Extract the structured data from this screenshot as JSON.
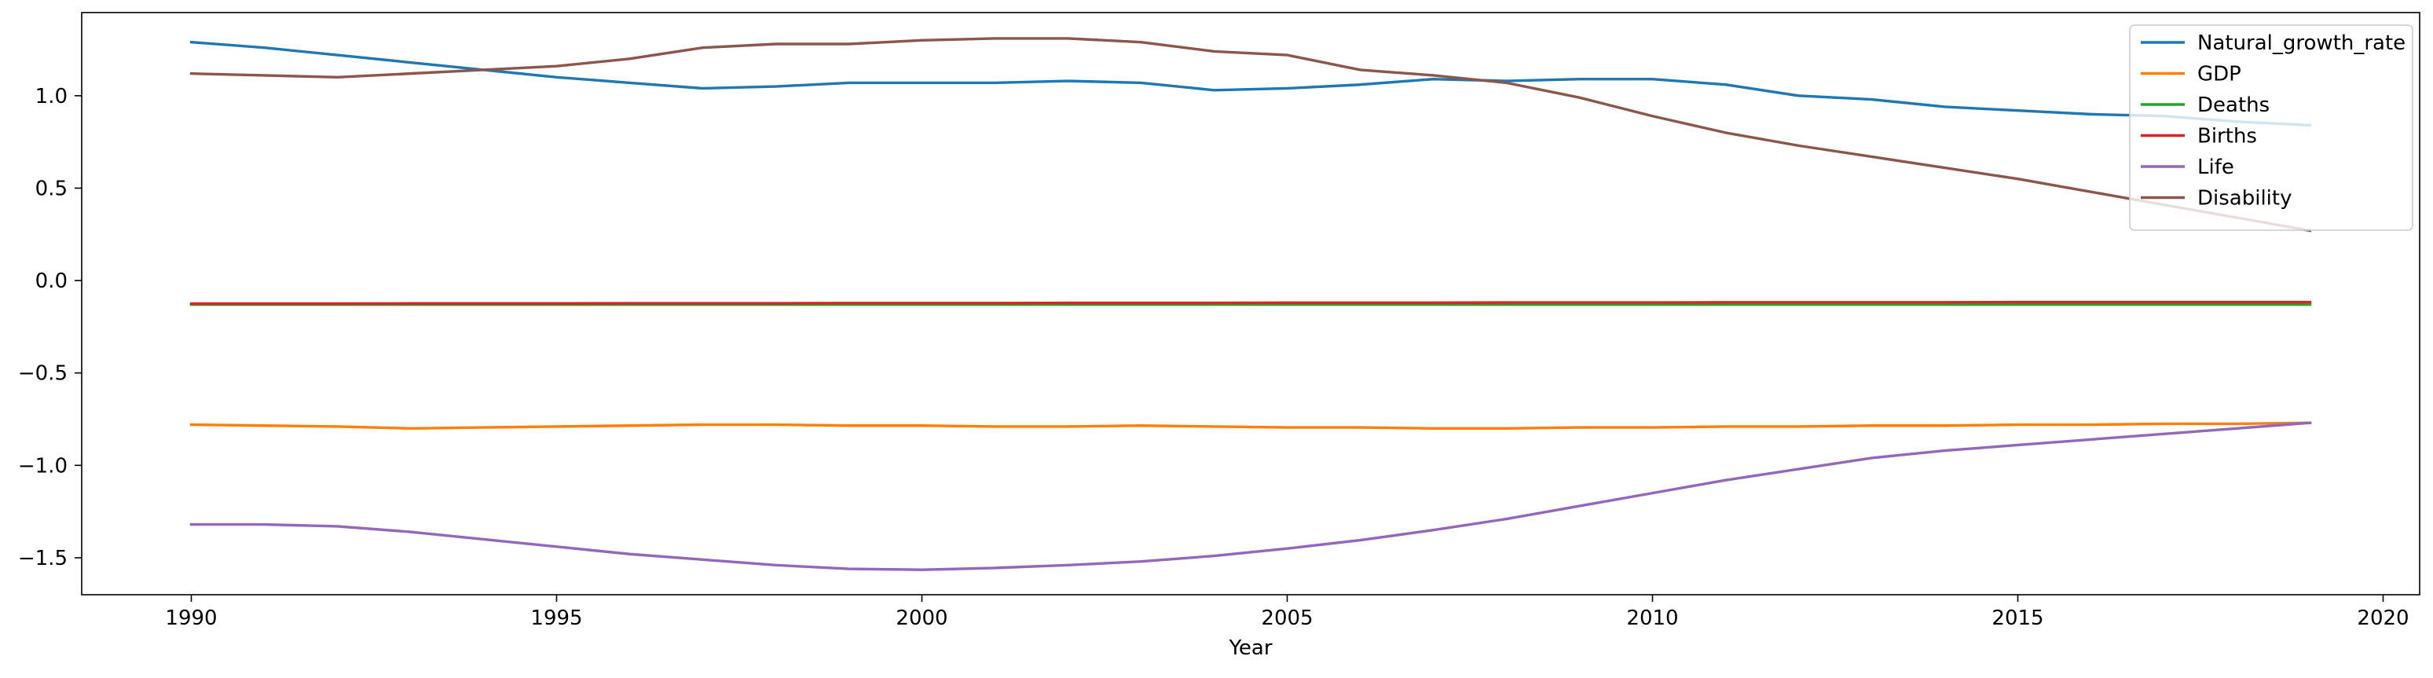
{
  "chart_data": {
    "type": "line",
    "title": "",
    "xlabel": "Year",
    "ylabel": "",
    "xlim": [
      1988.5,
      2020.5
    ],
    "ylim": [
      -1.7,
      1.45
    ],
    "x_ticks": [
      1990,
      1995,
      2000,
      2005,
      2010,
      2015,
      2020
    ],
    "y_ticks": [
      -1.5,
      -1.0,
      -0.5,
      0.0,
      0.5,
      1.0
    ],
    "y_tick_labels": [
      "−1.5",
      "−1.0",
      "−0.5",
      "0.0",
      "0.5",
      "1.0"
    ],
    "grid": false,
    "legend_position": "top-right",
    "x": [
      1990,
      1991,
      1992,
      1993,
      1994,
      1995,
      1996,
      1997,
      1998,
      1999,
      2000,
      2001,
      2002,
      2003,
      2004,
      2005,
      2006,
      2007,
      2008,
      2009,
      2010,
      2011,
      2012,
      2013,
      2014,
      2015,
      2016,
      2017,
      2018,
      2019
    ],
    "series": [
      {
        "name": "Natural_growth_rate",
        "color": "#1f77b4",
        "values": [
          1.29,
          1.26,
          1.22,
          1.18,
          1.14,
          1.1,
          1.07,
          1.04,
          1.05,
          1.07,
          1.07,
          1.07,
          1.08,
          1.07,
          1.03,
          1.04,
          1.06,
          1.09,
          1.08,
          1.09,
          1.09,
          1.06,
          1.0,
          0.98,
          0.94,
          0.92,
          0.9,
          0.89,
          0.86,
          0.84
        ]
      },
      {
        "name": "GDP",
        "color": "#ff7f0e",
        "values": [
          -0.78,
          -0.785,
          -0.79,
          -0.8,
          -0.795,
          -0.79,
          -0.785,
          -0.78,
          -0.78,
          -0.785,
          -0.785,
          -0.79,
          -0.79,
          -0.785,
          -0.79,
          -0.795,
          -0.795,
          -0.8,
          -0.8,
          -0.795,
          -0.795,
          -0.79,
          -0.79,
          -0.785,
          -0.785,
          -0.78,
          -0.78,
          -0.775,
          -0.775,
          -0.77
        ]
      },
      {
        "name": "Deaths",
        "color": "#2ca02c",
        "values": [
          -0.13,
          -0.13,
          -0.13,
          -0.13,
          -0.13,
          -0.13,
          -0.13,
          -0.13,
          -0.13,
          -0.13,
          -0.13,
          -0.13,
          -0.13,
          -0.13,
          -0.13,
          -0.13,
          -0.13,
          -0.13,
          -0.13,
          -0.13,
          -0.13,
          -0.13,
          -0.13,
          -0.13,
          -0.13,
          -0.13,
          -0.13,
          -0.13,
          -0.13,
          -0.13
        ]
      },
      {
        "name": "Births",
        "color": "#d62728",
        "values": [
          -0.125,
          -0.125,
          -0.125,
          -0.124,
          -0.124,
          -0.124,
          -0.123,
          -0.123,
          -0.123,
          -0.122,
          -0.122,
          -0.122,
          -0.121,
          -0.121,
          -0.121,
          -0.12,
          -0.12,
          -0.12,
          -0.119,
          -0.119,
          -0.119,
          -0.118,
          -0.118,
          -0.118,
          -0.118,
          -0.117,
          -0.117,
          -0.117,
          -0.117,
          -0.117
        ]
      },
      {
        "name": "Life",
        "color": "#9467bd",
        "values": [
          -1.32,
          -1.32,
          -1.33,
          -1.36,
          -1.4,
          -1.44,
          -1.48,
          -1.51,
          -1.54,
          -1.56,
          -1.565,
          -1.555,
          -1.54,
          -1.52,
          -1.49,
          -1.45,
          -1.405,
          -1.35,
          -1.29,
          -1.22,
          -1.15,
          -1.08,
          -1.02,
          -0.96,
          -0.92,
          -0.89,
          -0.86,
          -0.83,
          -0.8,
          -0.77
        ]
      },
      {
        "name": "Disability",
        "color": "#8c564b",
        "values": [
          1.12,
          1.11,
          1.1,
          1.12,
          1.14,
          1.16,
          1.2,
          1.26,
          1.28,
          1.28,
          1.3,
          1.31,
          1.31,
          1.29,
          1.24,
          1.22,
          1.14,
          1.11,
          1.07,
          0.99,
          0.89,
          0.8,
          0.73,
          0.67,
          0.61,
          0.55,
          0.48,
          0.41,
          0.34,
          0.27
        ]
      }
    ]
  }
}
